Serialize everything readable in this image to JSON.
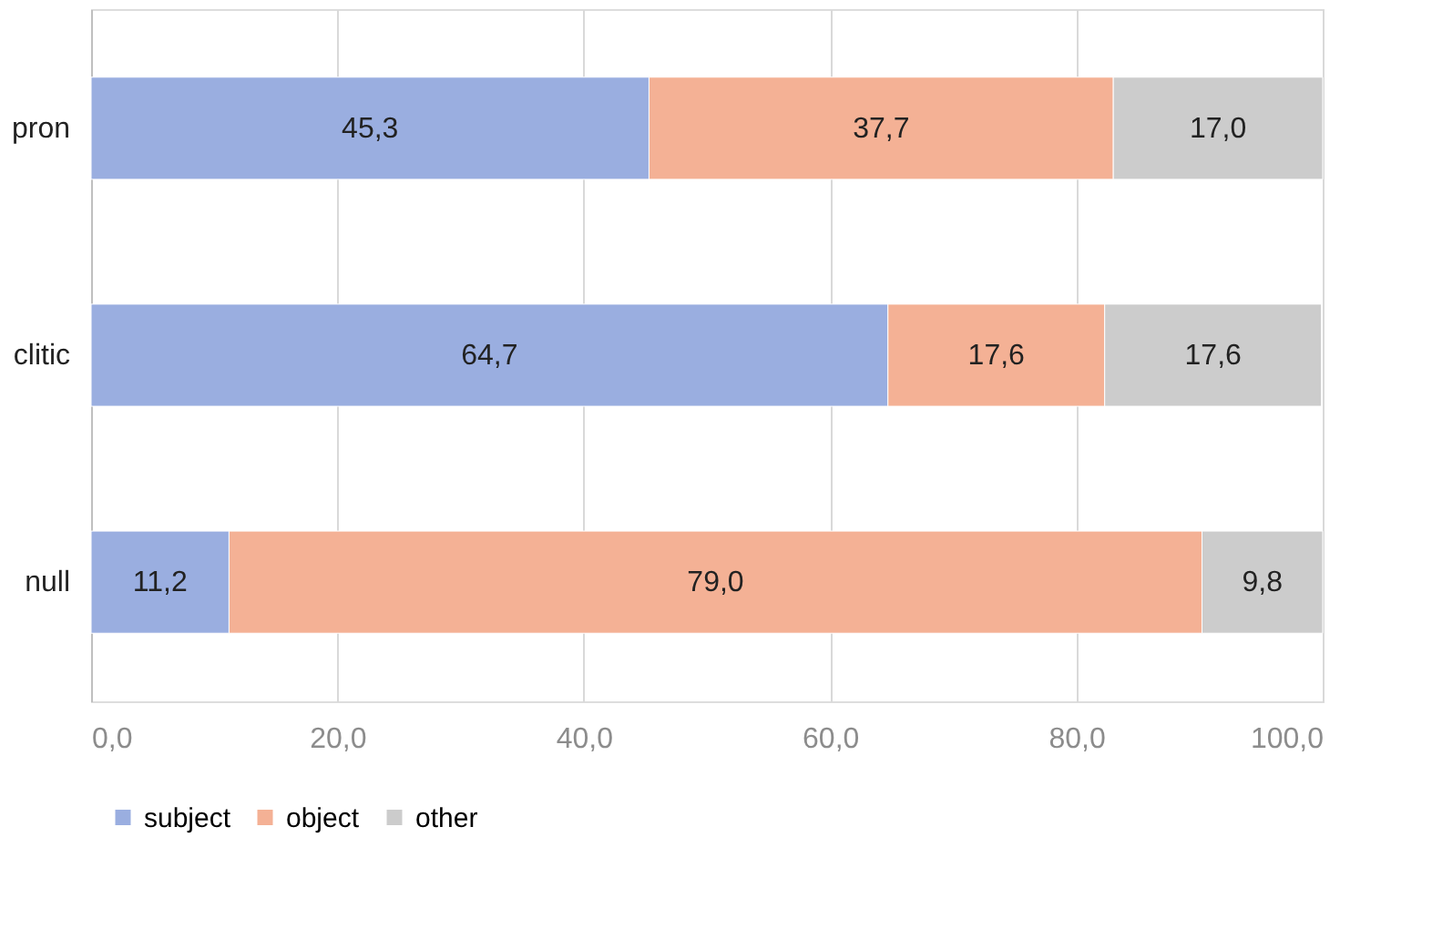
{
  "chart_data": {
    "type": "bar",
    "orientation": "horizontal",
    "stacked": true,
    "categories": [
      "pron",
      "clitic",
      "null"
    ],
    "series": [
      {
        "name": "subject",
        "color": "#9aaee0",
        "values": [
          45.3,
          64.7,
          11.2
        ],
        "value_labels": [
          "45,3",
          "64,7",
          "11,2"
        ]
      },
      {
        "name": "object",
        "color": "#f4b195",
        "values": [
          37.7,
          17.6,
          79.0
        ],
        "value_labels": [
          "37,7",
          "17,6",
          "79,0"
        ]
      },
      {
        "name": "other",
        "color": "#cccccc",
        "values": [
          17.0,
          17.6,
          9.8
        ],
        "value_labels": [
          "17,0",
          "17,6",
          "9,8"
        ]
      }
    ],
    "xlim": [
      0,
      100
    ],
    "xticks": [
      {
        "value": 0,
        "label": "0,0"
      },
      {
        "value": 20,
        "label": "20,0"
      },
      {
        "value": 40,
        "label": "40,0"
      },
      {
        "value": 60,
        "label": "60,0"
      },
      {
        "value": 80,
        "label": "80,0"
      },
      {
        "value": 100,
        "label": "100,0"
      }
    ],
    "grid": "x",
    "legend": "bottom"
  }
}
